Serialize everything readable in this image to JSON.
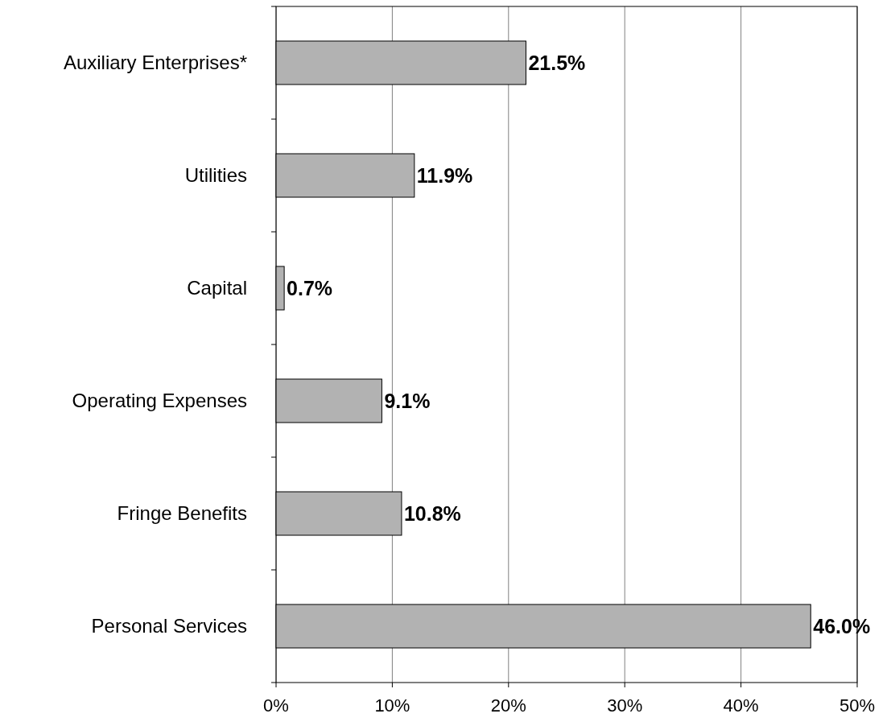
{
  "chart_data": {
    "type": "bar",
    "orientation": "horizontal",
    "categories": [
      "Auxiliary Enterprises*",
      "Utilities",
      "Capital",
      "Operating Expenses",
      "Fringe Benefits",
      "Personal Services"
    ],
    "values": [
      21.5,
      11.9,
      0.7,
      9.1,
      10.8,
      46.0
    ],
    "value_labels": [
      "21.5%",
      "11.9%",
      "0.7%",
      "9.1%",
      "10.8%",
      "46.0%"
    ],
    "color": "#b2b2b2",
    "xlim": [
      0,
      50
    ],
    "xticks": [
      {
        "value": 0,
        "label": "0%"
      },
      {
        "value": 10,
        "label": "10%"
      },
      {
        "value": 20,
        "label": "20%"
      },
      {
        "value": 30,
        "label": "30%"
      },
      {
        "value": 40,
        "label": "40%"
      },
      {
        "value": 50,
        "label": "50%"
      }
    ],
    "grid": "x"
  }
}
